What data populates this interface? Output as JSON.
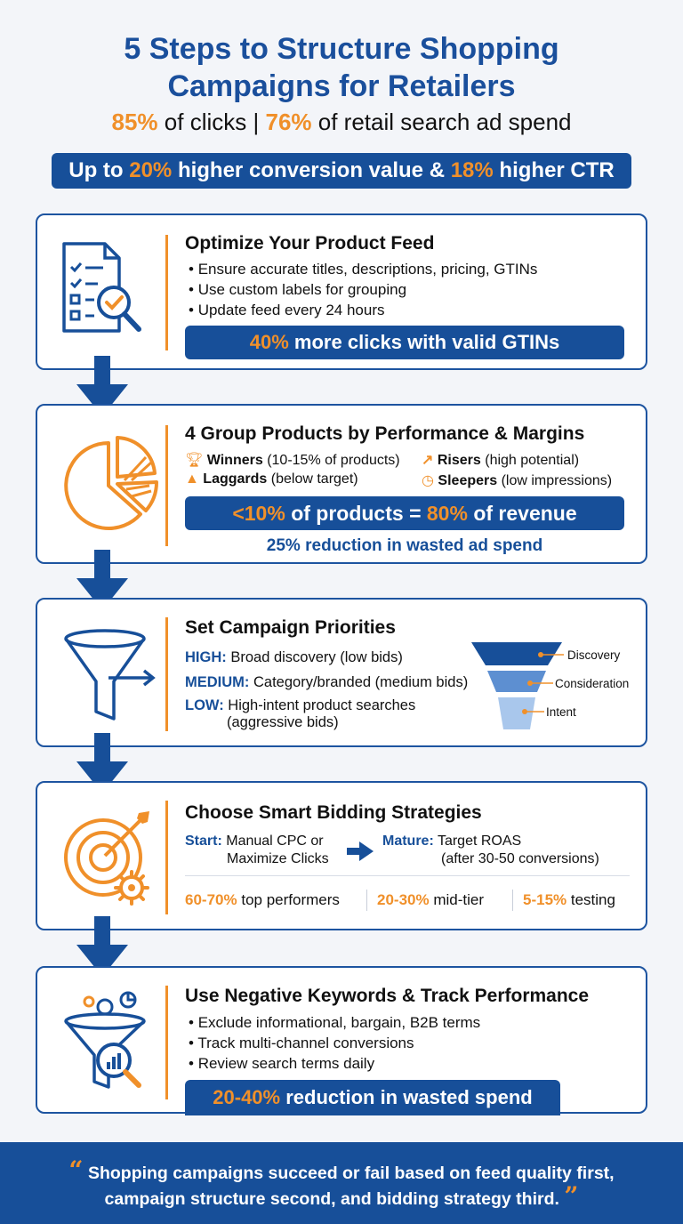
{
  "header": {
    "title_line1": "5 Steps to Structure Shopping",
    "title_line2": "Campaigns for Retailers",
    "stat1_value": "85%",
    "stat1_label": "of clicks",
    "divider": "|",
    "stat2_value": "76%",
    "stat2_label": "of retail search ad spend",
    "banner": {
      "prefix": "Up to",
      "value1": "20%",
      "mid": "higher conversion value &",
      "value2": "18%",
      "suffix": "higher CTR"
    }
  },
  "steps": [
    {
      "title": "Optimize Your Product Feed",
      "bullets": [
        "Ensure accurate titles, descriptions, pricing, GTINs",
        "Use custom labels for grouping",
        "Update feed every 24 hours"
      ],
      "callout_value": "40%",
      "callout_text": "more clicks with valid GTINs",
      "icon": "document-checklist-magnifier-icon"
    },
    {
      "title": "4 Group Products by Performance & Margins",
      "groups": [
        {
          "name": "Winners",
          "desc": "(10-15% of products)",
          "icon": "trophy-icon"
        },
        {
          "name": "Risers",
          "desc": "(high potential)",
          "icon": "trend-up-icon"
        },
        {
          "name": "Laggards",
          "desc": "(below target)",
          "icon": "thumbs-up-icon"
        },
        {
          "name": "Sleepers",
          "desc": "(low impressions)",
          "icon": "clock-icon"
        }
      ],
      "callout_value1": "<10%",
      "callout_mid": "of products =",
      "callout_value2": "80%",
      "callout_suffix": "of revenue",
      "subnote": "25% reduction in wasted ad spend",
      "icon": "pie-chart-icon"
    },
    {
      "title": "Set Campaign Priorities",
      "priorities": [
        {
          "level": "HIGH:",
          "desc": "Broad discovery (low bids)"
        },
        {
          "level": "MEDIUM:",
          "desc": "Category/branded (medium bids)"
        },
        {
          "level": "LOW:",
          "desc": "High-intent product searches",
          "desc2": "(aggressive bids)"
        }
      ],
      "funnel_labels": [
        "Discovery",
        "Consideration",
        "Intent"
      ],
      "icon": "funnel-arrow-icon"
    },
    {
      "title": "Choose Smart Bidding Strategies",
      "start_label": "Start:",
      "start_line1": "Manual CPC or",
      "start_line2": "Maximize Clicks",
      "mature_label": "Mature:",
      "mature_line1": "Target ROAS",
      "mature_line2": "(after 30-50 conversions)",
      "splits": [
        {
          "value": "60-70%",
          "label": "top performers"
        },
        {
          "value": "20-30%",
          "label": "mid-tier"
        },
        {
          "value": "5-15%",
          "label": "testing"
        }
      ],
      "icon": "target-gear-icon"
    },
    {
      "title": "Use Negative Keywords & Track Performance",
      "bullets": [
        "Exclude informational, bargain, B2B terms",
        "Track multi-channel conversions",
        "Review search terms daily"
      ],
      "callout_value": "20-40%",
      "callout_text": "reduction in wasted spend",
      "icon": "funnel-analytics-icon"
    }
  ],
  "footer": {
    "quote_open": "“",
    "line1": "Shopping campaigns succeed or fail based on feed quality first,",
    "line2": "campaign structure second, and bidding strategy third.",
    "quote_close": "”"
  },
  "colors": {
    "primary_blue": "#174f99",
    "accent_orange": "#f0902a",
    "background": "#f3f5f9"
  }
}
